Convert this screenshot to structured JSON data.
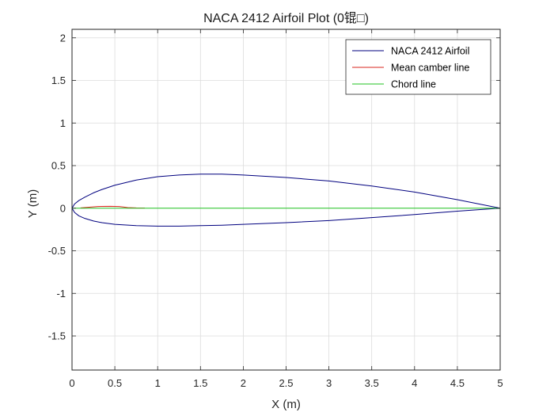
{
  "chart_data": {
    "type": "line",
    "title": "NACA 2412 Airfoil Plot (0锟□)",
    "xlabel": "X (m)",
    "ylabel": "Y (m)",
    "xlim": [
      0,
      5
    ],
    "ylim": [
      -1.9,
      2.1
    ],
    "xticks": [
      0,
      0.5,
      1,
      1.5,
      2,
      2.5,
      3,
      3.5,
      4,
      4.5,
      5
    ],
    "xtick_labels": [
      "0",
      "0.5",
      "1",
      "1.5",
      "2",
      "2.5",
      "3",
      "3.5",
      "4",
      "4.5",
      "5"
    ],
    "yticks": [
      -1.5,
      -1,
      -0.5,
      0,
      0.5,
      1,
      1.5,
      2
    ],
    "ytick_labels": [
      "-1.5",
      "-1",
      "-0.5",
      "0",
      "0.5",
      "1",
      "1.5",
      "2"
    ],
    "grid": true,
    "legend_position": "top-right",
    "series": [
      {
        "name": "NACA 2412 Airfoil",
        "color": "#00007f",
        "x": [
          5,
          4.5,
          4,
          3.5,
          3,
          2.5,
          2,
          1.75,
          1.5,
          1.25,
          1,
          0.75,
          0.5,
          0.35,
          0.25,
          0.15,
          0.08,
          0.03,
          0,
          0.03,
          0.08,
          0.15,
          0.25,
          0.35,
          0.5,
          0.75,
          1,
          1.25,
          1.5,
          1.75,
          2,
          2.5,
          3,
          3.5,
          4,
          4.5,
          5
        ],
        "y": [
          0,
          0.1,
          0.19,
          0.26,
          0.32,
          0.36,
          0.39,
          0.4,
          0.4,
          0.39,
          0.37,
          0.33,
          0.27,
          0.22,
          0.18,
          0.13,
          0.09,
          0.05,
          0,
          -0.05,
          -0.09,
          -0.12,
          -0.15,
          -0.17,
          -0.19,
          -0.205,
          -0.21,
          -0.21,
          -0.205,
          -0.2,
          -0.19,
          -0.17,
          -0.145,
          -0.11,
          -0.075,
          -0.035,
          0
        ]
      },
      {
        "name": "Mean camber line",
        "color": "#d9261c",
        "x": [
          0.1,
          0.2,
          0.3,
          0.45,
          0.55,
          0.6,
          0.65,
          0.75,
          0.85
        ],
        "y": [
          0.003,
          0.012,
          0.02,
          0.022,
          0.02,
          0.014,
          0.007,
          0.003,
          0.002
        ]
      },
      {
        "name": "Chord line",
        "color": "#22c322",
        "x": [
          0,
          5
        ],
        "y": [
          0,
          0
        ]
      }
    ]
  }
}
